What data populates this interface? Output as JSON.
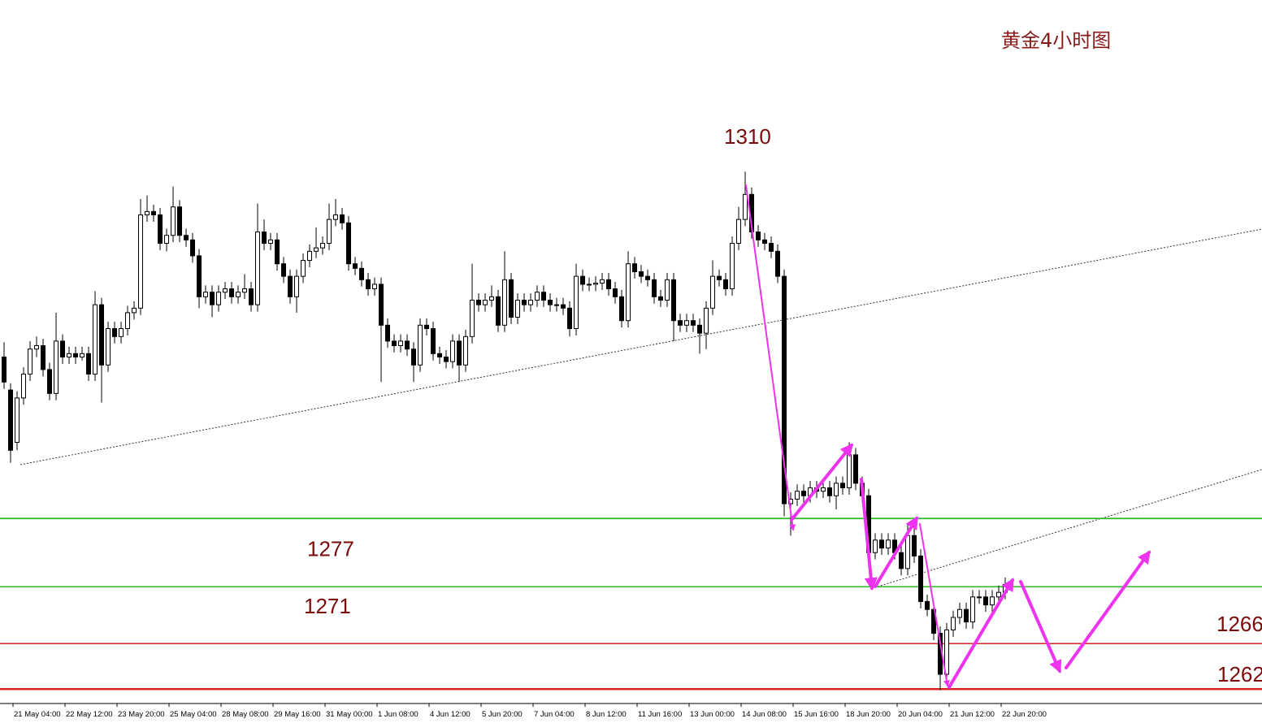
{
  "chart_data": {
    "type": "candlestick",
    "title": "黄金4小时图",
    "annotation": "1310",
    "up_color": "#ffffff",
    "down_color": "#000000",
    "ylim": [
      1260.8,
      1322.6
    ],
    "levels": [
      {
        "value": 1277,
        "color": "#2eb82e"
      },
      {
        "value": 1271,
        "color": "#2eb82e"
      },
      {
        "value": 1266,
        "color": "#dd2222"
      },
      {
        "value": 1262,
        "color": "#dd2222"
      }
    ],
    "categories": [
      null,
      null,
      "21 May 04:00",
      null,
      null,
      null,
      null,
      null,
      null,
      null,
      "22 May 12:00",
      null,
      null,
      null,
      null,
      null,
      null,
      null,
      "23 May 20:00",
      null,
      null,
      null,
      null,
      null,
      null,
      null,
      "25 May 04:00",
      null,
      null,
      null,
      null,
      null,
      null,
      null,
      "28 May 08:00",
      null,
      null,
      null,
      null,
      null,
      null,
      null,
      "29 May 16:00",
      null,
      null,
      null,
      null,
      null,
      null,
      null,
      "31 May 00:00",
      null,
      null,
      null,
      null,
      null,
      null,
      null,
      "1 Jun 08:00",
      null,
      null,
      null,
      null,
      null,
      null,
      null,
      "4 Jun 12:00",
      null,
      null,
      null,
      null,
      null,
      null,
      null,
      "5 Jun 20:00",
      null,
      null,
      null,
      null,
      null,
      null,
      null,
      "7 Jun 04:00",
      null,
      null,
      null,
      null,
      null,
      null,
      null,
      "8 Jun 12:00",
      null,
      null,
      null,
      null,
      null,
      null,
      null,
      "11 Jun 16:00",
      null,
      null,
      null,
      null,
      null,
      null,
      null,
      "13 Jun 00:00",
      null,
      null,
      null,
      null,
      null,
      null,
      null,
      "14 Jun 08:00",
      null,
      null,
      null,
      null,
      null,
      null,
      null,
      "15 Jun 16:00",
      null,
      null,
      null,
      null,
      null,
      null,
      null,
      "18 Jun 20:00",
      null,
      null,
      null,
      null,
      null,
      null,
      null,
      "20 Jun 04:00",
      null,
      null,
      null,
      null,
      null,
      null,
      null,
      "21 Jun 12:00",
      null,
      null,
      null,
      null,
      null,
      null,
      null,
      "22 Jun 20:00"
    ],
    "open": [
      1291.2,
      1288.3,
      1283.7,
      1287.6,
      1289.7,
      1291.9,
      1292.2,
      1290.1,
      1288.0,
      1292.6,
      1291.2,
      1291.5,
      1291.2,
      1291.5,
      1289.7,
      1295.8,
      1290.5,
      1293.7,
      1293.0,
      1293.7,
      1295.1,
      1295.5,
      1303.7,
      1304.0,
      1303.7,
      1301.2,
      1301.9,
      1304.4,
      1301.9,
      1301.5,
      1300.1,
      1296.5,
      1296.9,
      1295.8,
      1296.9,
      1297.2,
      1296.5,
      1296.9,
      1297.2,
      1295.8,
      1302.2,
      1301.2,
      1301.5,
      1299.4,
      1298.3,
      1296.5,
      1298.3,
      1299.7,
      1300.5,
      1300.8,
      1301.2,
      1303.3,
      1303.7,
      1303.0,
      1299.4,
      1299.0,
      1298.0,
      1297.2,
      1297.6,
      1294.0,
      1292.6,
      1292.2,
      1292.6,
      1291.9,
      1290.5,
      1294.0,
      1293.7,
      1291.5,
      1291.2,
      1290.8,
      1292.6,
      1290.5,
      1293.0,
      1296.2,
      1295.8,
      1296.2,
      1296.5,
      1294.0,
      1298.0,
      1294.7,
      1296.2,
      1295.8,
      1296.2,
      1296.9,
      1296.2,
      1295.8,
      1295.8,
      1295.5,
      1293.7,
      1298.3,
      1297.6,
      1297.6,
      1297.7,
      1298.0,
      1297.2,
      1296.5,
      1294.4,
      1299.4,
      1298.7,
      1298.3,
      1298.0,
      1296.5,
      1296.2,
      1298.0,
      1294.4,
      1294.0,
      1294.4,
      1294.0,
      1293.3,
      1295.5,
      1298.3,
      1298.0,
      1297.2,
      1301.2,
      1303.3,
      1305.5,
      1302.2,
      1301.5,
      1301.2,
      1300.5,
      1298.3,
      1278.3,
      1278.7,
      1279.4,
      1279.0,
      1279.7,
      1279.4,
      1279.7,
      1279.0,
      1280.1,
      1279.7,
      1282.6,
      1280.1,
      1279.0,
      1274.0,
      1275.1,
      1274.4,
      1275.1,
      1274.0,
      1272.6,
      1275.5,
      1273.7,
      1269.7,
      1269.0,
      1266.9,
      1263.3,
      1267.2,
      1268.3,
      1269.0,
      1267.9,
      1270.1,
      1270.1,
      1269.4,
      1270.1,
      1270.5
    ],
    "high": [
      1292.5,
      1288.9,
      1288.2,
      1290.3,
      1292.6,
      1293.0,
      1292.8,
      1290.7,
      1295.1,
      1293.2,
      1292.1,
      1292.1,
      1292.1,
      1292.1,
      1297.0,
      1296.4,
      1294.3,
      1294.3,
      1294.3,
      1295.7,
      1296.1,
      1305.1,
      1305.4,
      1304.6,
      1304.3,
      1302.5,
      1306.2,
      1305.0,
      1302.5,
      1302.1,
      1300.7,
      1297.5,
      1297.5,
      1297.5,
      1297.8,
      1297.8,
      1297.5,
      1298.5,
      1297.8,
      1304.7,
      1303.3,
      1302.1,
      1302.1,
      1300.0,
      1298.9,
      1298.9,
      1300.3,
      1301.1,
      1302.6,
      1301.8,
      1304.7,
      1305.1,
      1304.3,
      1303.6,
      1300.0,
      1299.6,
      1298.6,
      1298.2,
      1298.2,
      1294.6,
      1293.2,
      1293.2,
      1293.2,
      1292.5,
      1294.6,
      1294.6,
      1294.3,
      1292.1,
      1291.8,
      1293.2,
      1293.2,
      1293.6,
      1299.4,
      1296.8,
      1296.8,
      1297.5,
      1297.1,
      1300.5,
      1298.6,
      1296.8,
      1296.8,
      1296.8,
      1297.5,
      1297.5,
      1296.8,
      1296.4,
      1296.4,
      1296.1,
      1299.4,
      1298.9,
      1298.2,
      1298.3,
      1298.6,
      1298.6,
      1297.8,
      1297.1,
      1300.5,
      1300.0,
      1299.3,
      1298.9,
      1298.6,
      1297.1,
      1298.6,
      1298.6,
      1295.0,
      1295.0,
      1295.0,
      1294.6,
      1296.1,
      1299.7,
      1298.9,
      1298.6,
      1301.8,
      1304.4,
      1307.5,
      1306.1,
      1302.8,
      1302.1,
      1301.8,
      1301.1,
      1298.9,
      1279.3,
      1280.0,
      1280.0,
      1280.3,
      1280.3,
      1280.3,
      1280.3,
      1280.7,
      1280.7,
      1283.7,
      1283.2,
      1280.7,
      1279.6,
      1275.7,
      1275.7,
      1275.7,
      1275.7,
      1274.6,
      1276.5,
      1276.1,
      1274.3,
      1270.3,
      1269.6,
      1267.5,
      1267.8,
      1268.9,
      1269.6,
      1269.6,
      1270.7,
      1270.7,
      1270.7,
      1270.7,
      1271.1,
      1271.8
    ],
    "low": [
      1288.4,
      1281.9,
      1283.0,
      1287.0,
      1289.1,
      1291.2,
      1289.5,
      1287.4,
      1287.4,
      1290.6,
      1290.6,
      1290.6,
      1290.9,
      1289.1,
      1289.1,
      1287.2,
      1289.9,
      1292.4,
      1292.4,
      1293.1,
      1294.5,
      1294.9,
      1303.1,
      1303.1,
      1300.6,
      1300.5,
      1301.3,
      1301.3,
      1300.9,
      1299.5,
      1295.5,
      1295.9,
      1294.7,
      1295.2,
      1296.3,
      1295.9,
      1295.9,
      1296.3,
      1295.2,
      1295.2,
      1300.6,
      1300.6,
      1298.8,
      1297.7,
      1295.9,
      1295.1,
      1297.7,
      1299.1,
      1299.9,
      1300.2,
      1300.6,
      1302.7,
      1302.4,
      1298.8,
      1298.4,
      1297.4,
      1296.6,
      1296.6,
      1289.0,
      1292.0,
      1291.6,
      1291.6,
      1291.3,
      1289.0,
      1289.9,
      1293.1,
      1290.9,
      1290.6,
      1290.2,
      1290.2,
      1289.0,
      1289.9,
      1292.4,
      1295.2,
      1295.2,
      1295.6,
      1293.4,
      1293.4,
      1294.1,
      1294.1,
      1295.2,
      1295.2,
      1295.6,
      1295.6,
      1295.2,
      1295.2,
      1294.9,
      1293.0,
      1293.1,
      1297.0,
      1297.0,
      1297.0,
      1297.1,
      1296.6,
      1295.9,
      1293.8,
      1293.8,
      1298.1,
      1297.7,
      1297.4,
      1295.9,
      1295.6,
      1295.6,
      1292.6,
      1293.4,
      1293.4,
      1293.4,
      1291.5,
      1291.9,
      1294.9,
      1297.4,
      1296.6,
      1296.6,
      1300.6,
      1302.7,
      1301.6,
      1300.9,
      1300.6,
      1299.9,
      1297.7,
      1277.2,
      1275.5,
      1278.1,
      1278.4,
      1278.4,
      1278.8,
      1278.8,
      1278.4,
      1277.8,
      1279.1,
      1279.1,
      1279.5,
      1278.4,
      1273.4,
      1273.4,
      1273.8,
      1273.8,
      1273.4,
      1272.0,
      1272.0,
      1273.1,
      1269.1,
      1268.4,
      1266.3,
      1261.9,
      1262.7,
      1266.6,
      1267.7,
      1267.3,
      1267.3,
      1269.5,
      1268.8,
      1268.8,
      1269.5,
      1269.9
    ],
    "close": [
      1289.0,
      1283.0,
      1287.6,
      1289.7,
      1291.9,
      1292.2,
      1290.1,
      1288.0,
      1292.6,
      1291.2,
      1291.5,
      1291.2,
      1291.5,
      1289.7,
      1295.8,
      1290.5,
      1293.7,
      1293.0,
      1293.7,
      1295.1,
      1295.5,
      1303.7,
      1304.0,
      1303.7,
      1301.2,
      1301.9,
      1304.4,
      1301.9,
      1301.5,
      1300.1,
      1296.5,
      1296.9,
      1295.8,
      1296.9,
      1297.2,
      1296.5,
      1296.9,
      1297.2,
      1295.8,
      1302.2,
      1301.2,
      1301.5,
      1299.4,
      1298.3,
      1296.5,
      1298.3,
      1299.7,
      1300.5,
      1300.8,
      1301.2,
      1303.3,
      1303.7,
      1303.0,
      1299.4,
      1299.0,
      1298.0,
      1297.2,
      1297.6,
      1294.0,
      1292.6,
      1292.2,
      1292.6,
      1291.9,
      1290.5,
      1294.0,
      1293.7,
      1291.5,
      1291.2,
      1290.8,
      1292.6,
      1290.5,
      1293.0,
      1296.2,
      1295.8,
      1296.2,
      1296.5,
      1294.0,
      1298.0,
      1294.7,
      1296.2,
      1295.8,
      1296.2,
      1296.9,
      1296.2,
      1295.8,
      1295.8,
      1295.5,
      1293.7,
      1298.3,
      1297.6,
      1297.6,
      1297.7,
      1298.0,
      1297.2,
      1296.5,
      1294.4,
      1299.4,
      1298.7,
      1298.3,
      1298.0,
      1296.5,
      1296.2,
      1298.0,
      1294.4,
      1294.0,
      1294.4,
      1294.0,
      1293.3,
      1295.5,
      1298.3,
      1298.0,
      1297.2,
      1301.2,
      1303.3,
      1305.5,
      1302.2,
      1301.5,
      1301.2,
      1300.5,
      1298.3,
      1278.3,
      1278.7,
      1279.4,
      1279.0,
      1279.7,
      1279.4,
      1279.7,
      1279.0,
      1280.1,
      1279.7,
      1282.6,
      1280.1,
      1279.0,
      1274.0,
      1275.1,
      1274.4,
      1275.1,
      1274.0,
      1272.6,
      1275.5,
      1273.7,
      1269.7,
      1269.0,
      1266.9,
      1263.3,
      1267.2,
      1268.3,
      1269.0,
      1267.9,
      1270.1,
      1270.1,
      1269.4,
      1270.1,
      1270.5,
      1271.2
    ]
  }
}
